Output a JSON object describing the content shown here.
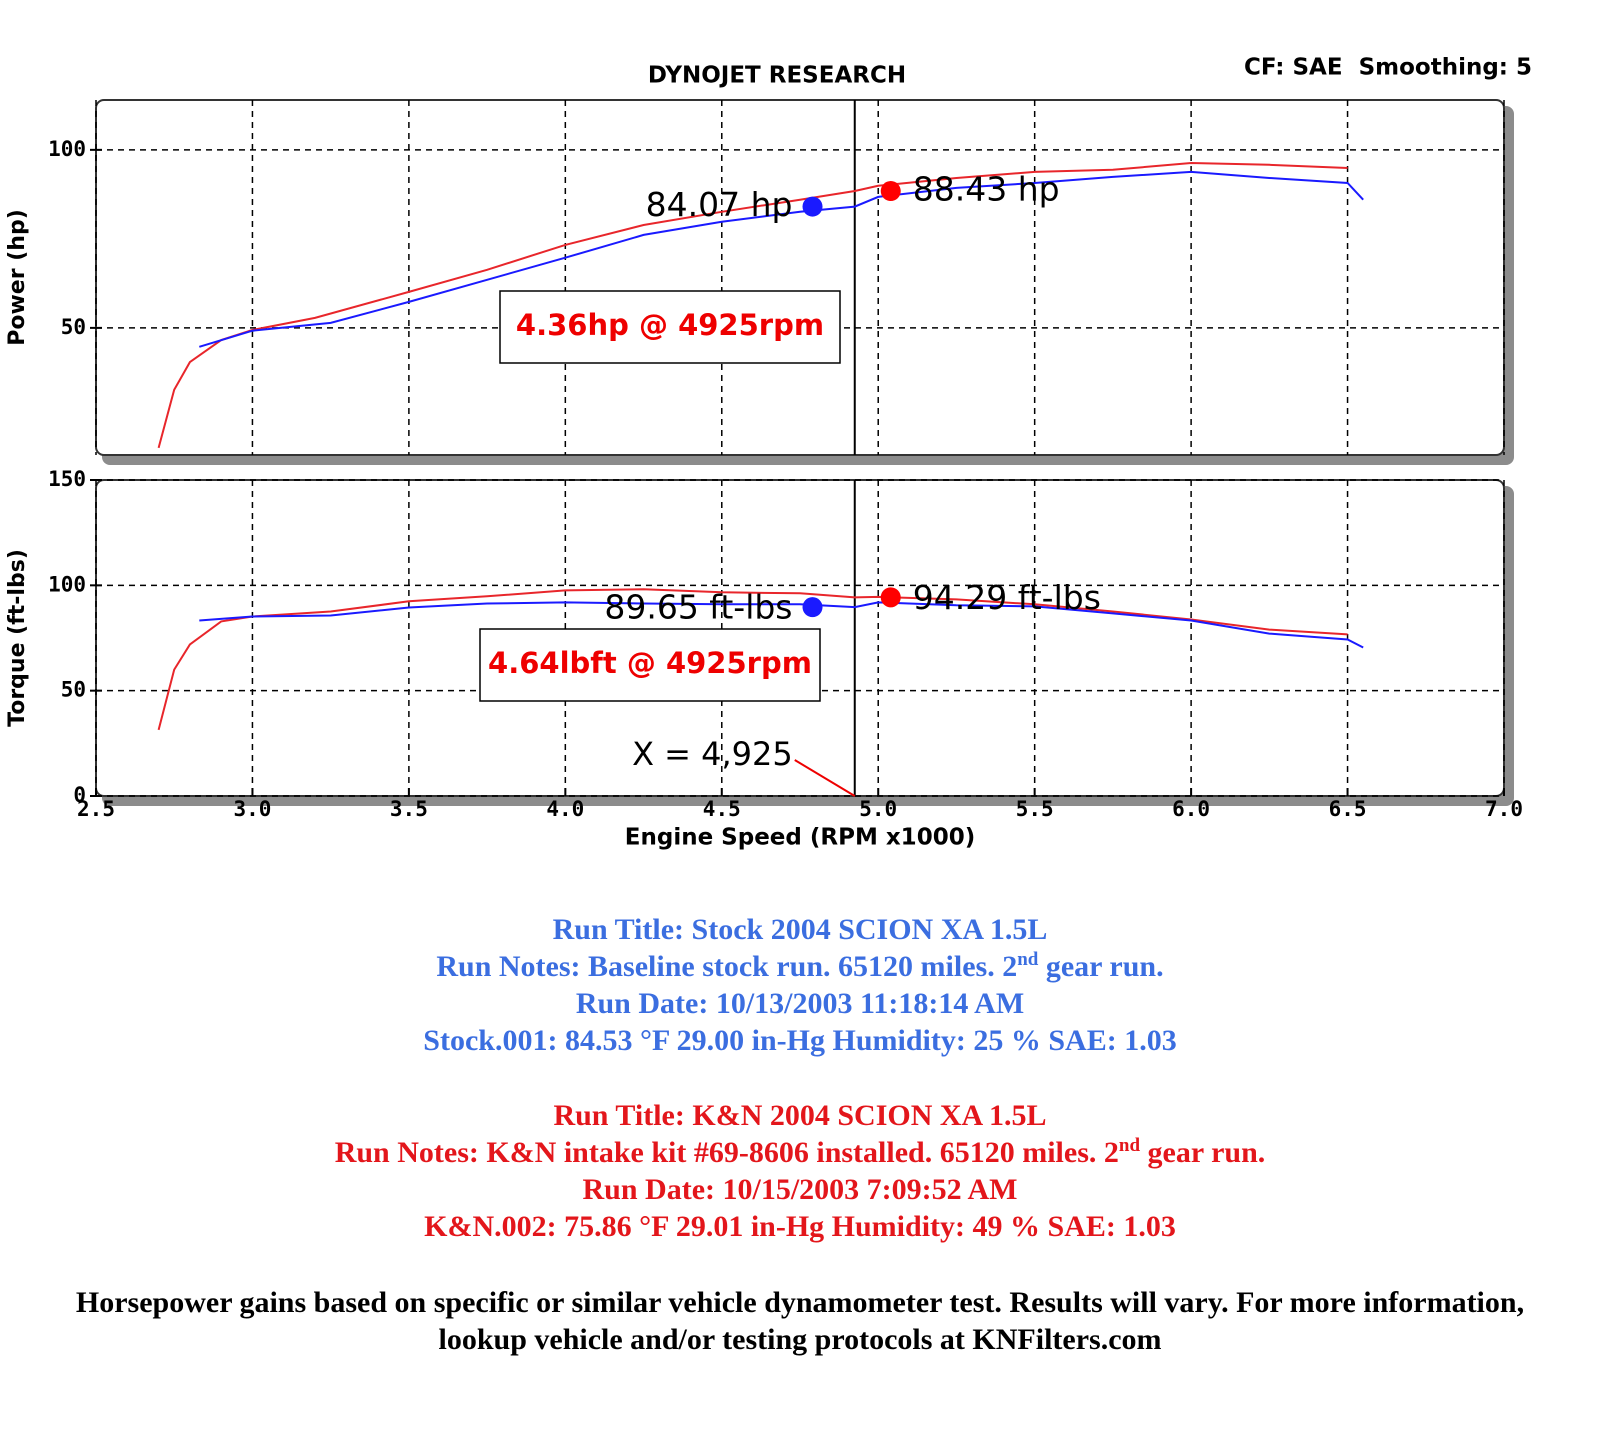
{
  "chart_data": [
    {
      "type": "line",
      "title": "DYNOJET RESEARCH",
      "subtitle": "CF: SAE  Smoothing: 5",
      "y_label": "Power (hp)",
      "xlim": [
        2.5,
        7.0
      ],
      "ylim": [
        14.3,
        114
      ],
      "xticks": [
        {
          "value": 2.5,
          "label": "2.5"
        },
        {
          "value": 3,
          "label": "3.0"
        },
        {
          "value": 3.5,
          "label": "3.5"
        },
        {
          "value": 4,
          "label": "4.0"
        },
        {
          "value": 4.5,
          "label": "4.5"
        },
        {
          "value": 5,
          "label": "5.0"
        },
        {
          "value": 5.5,
          "label": "5.5"
        },
        {
          "value": 6,
          "label": "6.0"
        },
        {
          "value": 6.5,
          "label": "6.5"
        },
        {
          "value": 7,
          "label": "7.0"
        }
      ],
      "yticks": [
        50,
        100
      ],
      "grid": true,
      "cursor": 4.925,
      "series": [
        {
          "color": "#e8262b",
          "x": [
            2.7,
            2.75,
            2.8,
            2.9,
            3.0,
            3.2,
            3.5,
            3.75,
            4.0,
            4.25,
            4.5,
            4.75,
            4.925,
            5.0,
            5.25,
            5.5,
            5.75,
            6.0,
            6.25,
            6.5
          ],
          "values": [
            16.3,
            32.6,
            40.4,
            46.6,
            49.4,
            52.8,
            60.1,
            66.3,
            73.3,
            78.9,
            82.6,
            86.0,
            88.43,
            89.9,
            92.1,
            93.8,
            94.4,
            96.3,
            95.8,
            94.9
          ]
        },
        {
          "color": "#1a1aff",
          "x": [
            2.83,
            3.0,
            3.25,
            3.5,
            3.75,
            4.0,
            4.25,
            4.5,
            4.75,
            4.925,
            5.0,
            5.25,
            5.5,
            5.75,
            6.0,
            6.25,
            6.5,
            6.55
          ],
          "values": [
            44.7,
            49.2,
            51.4,
            57.3,
            63.5,
            69.7,
            76.1,
            79.8,
            82.6,
            84.07,
            86.8,
            89.3,
            90.7,
            92.4,
            93.8,
            92.1,
            90.7,
            86.0
          ]
        }
      ],
      "markers": [
        {
          "x": 4.79,
          "value": 84.07,
          "label": "84.07 hp",
          "color": "#1a1aff",
          "side": "left"
        },
        {
          "x": 5.04,
          "value": 88.43,
          "label": "88.43 hp",
          "color": "#ff0000",
          "side": "right"
        }
      ],
      "box": "4.36hp @ 4925rpm"
    },
    {
      "type": "line",
      "y_label": "Torque (ft-lbs)",
      "x_label": "Engine Speed (RPM x1000)",
      "xlim": [
        2.5,
        7.0
      ],
      "ylim": [
        0,
        150
      ],
      "xticks": [
        {
          "value": 2.5,
          "label": "2.5"
        },
        {
          "value": 3,
          "label": "3.0"
        },
        {
          "value": 3.5,
          "label": "3.5"
        },
        {
          "value": 4,
          "label": "4.0"
        },
        {
          "value": 4.5,
          "label": "4.5"
        },
        {
          "value": 5,
          "label": "5.0"
        },
        {
          "value": 5.5,
          "label": "5.5"
        },
        {
          "value": 6,
          "label": "6.0"
        },
        {
          "value": 6.5,
          "label": "6.5"
        },
        {
          "value": 7,
          "label": "7.0"
        }
      ],
      "yticks": [
        0,
        50,
        100,
        150
      ],
      "grid": true,
      "cursor": {
        "value": 4.925,
        "label": "X = 4,925"
      },
      "series": [
        {
          "color": "#e8262b",
          "x": [
            2.7,
            2.75,
            2.8,
            2.9,
            3.0,
            3.25,
            3.5,
            3.75,
            4.0,
            4.25,
            4.5,
            4.75,
            4.925,
            5.0,
            5.25,
            5.5,
            5.75,
            6.0,
            6.25,
            6.5
          ],
          "values": [
            31.4,
            60,
            71.9,
            82.9,
            85.2,
            87.6,
            92.4,
            94.8,
            97.6,
            98.1,
            96.7,
            96.2,
            94.29,
            94.5,
            93.3,
            91,
            87.6,
            83.8,
            79,
            76.7
          ]
        },
        {
          "color": "#1a1aff",
          "x": [
            2.83,
            3.0,
            3.25,
            3.5,
            3.75,
            4.0,
            4.25,
            4.5,
            4.75,
            4.925,
            5.0,
            5.25,
            5.5,
            5.75,
            6.0,
            6.25,
            6.5,
            6.55
          ],
          "values": [
            83.3,
            85.2,
            85.7,
            89.5,
            91.4,
            91.9,
            91.4,
            91,
            91,
            89.65,
            91.9,
            90.5,
            90,
            86.7,
            83.3,
            77.1,
            74.3,
            70.5
          ]
        }
      ],
      "markers": [
        {
          "x": 4.79,
          "value": 89.65,
          "label": "89.65 ft-lbs",
          "color": "#1a1aff",
          "side": "left"
        },
        {
          "x": 5.04,
          "value": 94.29,
          "label": "94.29 ft-lbs",
          "color": "#ff0000",
          "side": "right"
        }
      ],
      "box": "4.64lbft @ 4925rpm"
    }
  ],
  "run_info": [
    {
      "color": "#3b6ee0",
      "lines": [
        {
          "text": "Run Title: Stock 2004 SCION XA 1.5L"
        },
        {
          "text": "Run Notes: Baseline stock run. 65120 miles. 2",
          "sup": "nd",
          "after": " gear run."
        },
        {
          "text": "Run Date: 10/13/2003 11:18:14 AM"
        },
        {
          "text": "Stock.001: 84.53 °F 29.00 in-Hg Humidity: 25 % SAE: 1.03"
        }
      ]
    },
    {
      "color": "#e3161b",
      "lines": [
        {
          "text": "Run Title: K&N 2004 SCION XA 1.5L"
        },
        {
          "text": "Run Notes: K&N intake kit #69-8606 installed. 65120 miles. 2",
          "sup": "nd",
          "after": " gear run."
        },
        {
          "text": "Run Date: 10/15/2003 7:09:52 AM"
        },
        {
          "text": "K&N.002: 75.86 °F 29.01 in-Hg Humidity: 49 % SAE: 1.03"
        }
      ]
    }
  ],
  "disclaimer": "Horsepower gains based on specific or similar vehicle dynamometer test. Results will vary. For more information, lookup vehicle and/or testing protocols at KNFilters.com"
}
